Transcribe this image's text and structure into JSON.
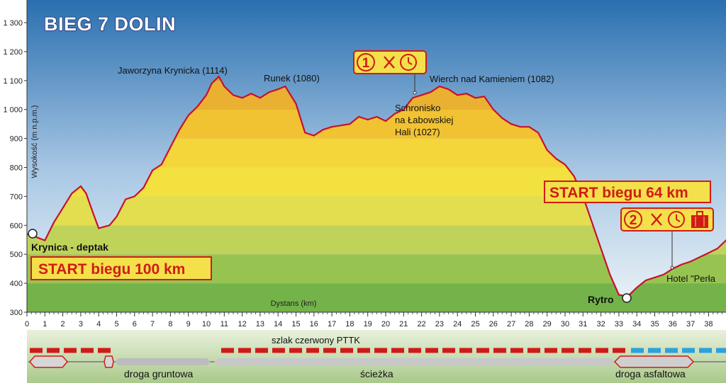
{
  "title": "BIEG 7 DOLIN",
  "colors": {
    "line": "#c8102e",
    "start_text": "#d01c16",
    "start_box": "#f4e04a",
    "sky_top": "#2a6fb0",
    "sky_bottom": "#e9f1f6",
    "band_colors": [
      "#73b34a",
      "#97c451",
      "#bfd35a",
      "#e3de4f",
      "#f2e13e",
      "#f4d53a",
      "#f1c232",
      "#eab032",
      "#e09b2f",
      "#d98a2d"
    ],
    "trail_red": "#d11a1a",
    "trail_blue": "#2aa2de"
  },
  "markers": {
    "start_100": "START biegu 100 km",
    "start_64": "START biegu 64 km",
    "krynica": "Krynica - deptak",
    "rytro": "Rytro",
    "hotel": "Hotel \"Perła",
    "cp1_number": "1",
    "cp2_number": "2",
    "cp1_icons": [
      "fork-knife-icon",
      "clock-icon"
    ],
    "cp2_icons": [
      "fork-knife-icon",
      "clock-icon",
      "luggage-icon"
    ]
  },
  "peaks": [
    {
      "text": "Jaworzyna Krynicka (1114)"
    },
    {
      "text": "Runek (1080)"
    },
    {
      "text": "Wierch nad Kamieniem (1082)"
    }
  ],
  "hut_lines": [
    "Schronisko",
    "na Łabowskiej",
    "Hali  (1027)"
  ],
  "legend": {
    "trail": "szlak czerwony PTTK",
    "gravel": "droga gruntowa",
    "path": "ścieżka",
    "asphalt": "droga asfaltowa"
  },
  "chart_data": {
    "type": "area",
    "title": "BIEG 7 DOLIN",
    "xlabel": "Dystans (km)",
    "ylabel": "Wysokość  (m n.p.m.)",
    "ylim": [
      300,
      1320
    ],
    "xlim": [
      0,
      39.3
    ],
    "yticks": [
      300,
      400,
      500,
      600,
      700,
      800,
      900,
      1000,
      1100,
      1200,
      1300
    ],
    "ytick_labels": [
      "300",
      "400",
      "500",
      "600",
      "700",
      "800",
      "900",
      "1 000",
      "1 100",
      "1 200",
      "1 300"
    ],
    "xticks": [
      0,
      1,
      2,
      3,
      4,
      5,
      6,
      7,
      8,
      9,
      10,
      11,
      12,
      13,
      14,
      15,
      16,
      17,
      18,
      19,
      20,
      21,
      22,
      23,
      24,
      25,
      26,
      27,
      28,
      29,
      30,
      31,
      32,
      33,
      34,
      35,
      36,
      37,
      38,
      39
    ],
    "grid": false,
    "series": [
      {
        "x": [
          0,
          0.5,
          1,
          1.5,
          2,
          2.5,
          3,
          3.3,
          3.7,
          4,
          4.3,
          4.6,
          5,
          5.5,
          6,
          6.5,
          7,
          7.5,
          8,
          8.5,
          9,
          9.5,
          10,
          10.3,
          10.7,
          11,
          11.5,
          12,
          12.5,
          13,
          13.5,
          14,
          14.4,
          15,
          15.5,
          16,
          16.5,
          17,
          17.5,
          18,
          18.5,
          19,
          19.5,
          20,
          20.5,
          21,
          21.5,
          22,
          22.5,
          23,
          23.5,
          24,
          24.5,
          25,
          25.5,
          26,
          26.5,
          27,
          27.5,
          28,
          28.5,
          29,
          29.5,
          30,
          30.5,
          31,
          31.5,
          32,
          32.5,
          33,
          33.5,
          34,
          34.5,
          35,
          35.5,
          36,
          36.5,
          37,
          37.5,
          38,
          38.5,
          39,
          39.3
        ],
        "y": [
          570,
          560,
          548,
          610,
          660,
          710,
          735,
          710,
          640,
          590,
          595,
          600,
          630,
          690,
          700,
          730,
          790,
          810,
          870,
          930,
          980,
          1010,
          1050,
          1090,
          1114,
          1080,
          1050,
          1040,
          1055,
          1040,
          1060,
          1070,
          1080,
          1020,
          920,
          910,
          930,
          940,
          945,
          950,
          975,
          965,
          975,
          960,
          985,
          1000,
          1040,
          1050,
          1060,
          1080,
          1070,
          1050,
          1055,
          1040,
          1045,
          1000,
          970,
          950,
          940,
          940,
          920,
          860,
          830,
          810,
          770,
          700,
          610,
          520,
          430,
          360,
          355,
          385,
          410,
          420,
          430,
          450,
          465,
          475,
          490,
          505,
          520,
          550,
          600
        ]
      }
    ]
  }
}
